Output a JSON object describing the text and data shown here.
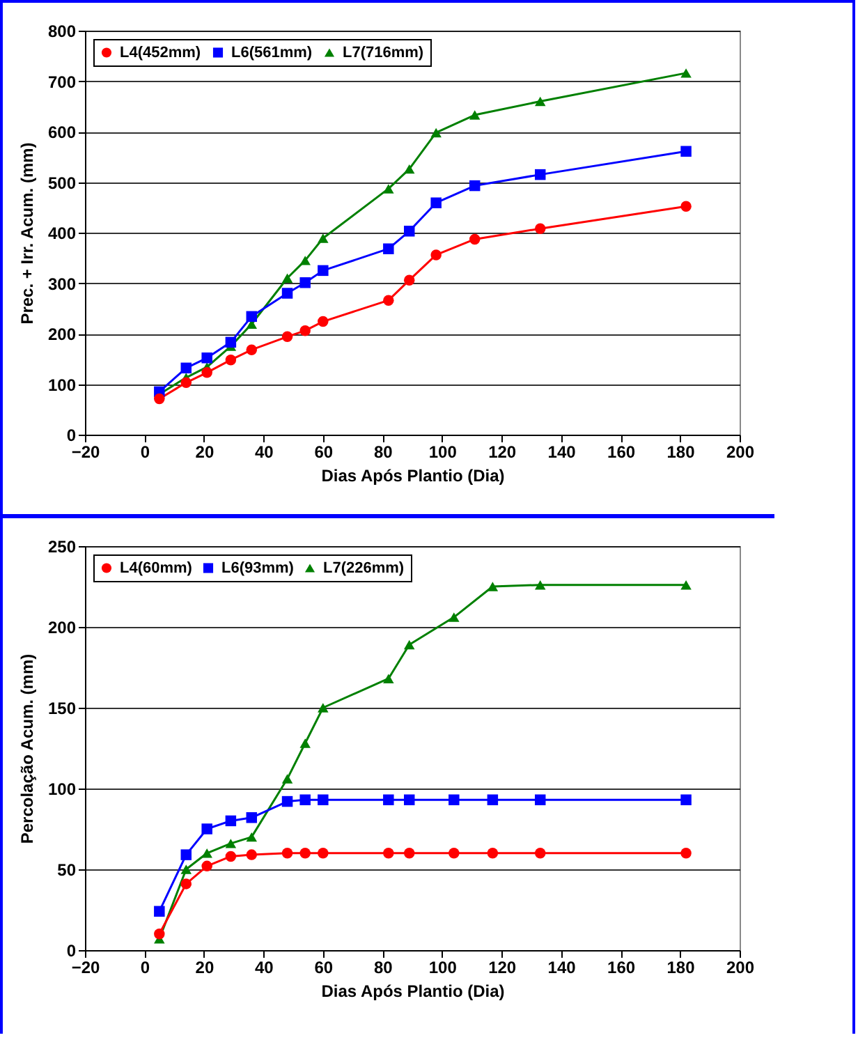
{
  "chart_data": [
    {
      "type": "line",
      "xlabel": "Dias Após Plantio (Dia)",
      "ylabel": "Prec. + Irr. Acum. (mm)",
      "xlim": [
        -20,
        200
      ],
      "xticks": [
        -20,
        0,
        20,
        40,
        60,
        80,
        100,
        120,
        140,
        160,
        180,
        200
      ],
      "ylim": [
        0,
        800
      ],
      "yticks": [
        0,
        100,
        200,
        300,
        400,
        500,
        600,
        700,
        800
      ],
      "grid": "y",
      "legend": "top left",
      "x": [
        5,
        14,
        21,
        29,
        36,
        48,
        54,
        60,
        82,
        89,
        98,
        111,
        133,
        182
      ],
      "series": [
        {
          "name": "L4(452mm)",
          "color": "#ff0000",
          "marker": "circle",
          "values": [
            71,
            103,
            123,
            148,
            168,
            194,
            206,
            224,
            266,
            306,
            356,
            387,
            408,
            452
          ]
        },
        {
          "name": "L6(561mm)",
          "color": "#0000ff",
          "marker": "square",
          "values": [
            85,
            132,
            152,
            183,
            234,
            280,
            301,
            325,
            368,
            403,
            459,
            493,
            515,
            561
          ]
        },
        {
          "name": "L7(716mm)",
          "color": "#008000",
          "marker": "triangle",
          "values": [
            80,
            113,
            134,
            175,
            219,
            310,
            345,
            389,
            487,
            526,
            598,
            633,
            660,
            716
          ]
        }
      ]
    },
    {
      "type": "line",
      "xlabel": "Dias Após Plantio (Dia)",
      "ylabel": "Percolação Acum. (mm)",
      "xlim": [
        -20,
        200
      ],
      "xticks": [
        -20,
        0,
        20,
        40,
        60,
        80,
        100,
        120,
        140,
        160,
        180,
        200
      ],
      "ylim": [
        0,
        250
      ],
      "yticks": [
        0,
        50,
        100,
        150,
        200,
        250
      ],
      "grid": "y",
      "legend": "top left",
      "x": [
        5,
        14,
        21,
        29,
        36,
        48,
        54,
        60,
        82,
        89,
        104,
        117,
        133,
        182
      ],
      "series": [
        {
          "name": "L4(60mm)",
          "color": "#ff0000",
          "marker": "circle",
          "values": [
            10,
            41,
            52,
            58,
            59,
            60,
            60,
            60,
            60,
            60,
            60,
            60,
            60,
            60
          ]
        },
        {
          "name": "L6(93mm)",
          "color": "#0000ff",
          "marker": "square",
          "values": [
            24,
            59,
            75,
            80,
            82,
            92,
            93,
            93,
            93,
            93,
            93,
            93,
            93,
            93
          ]
        },
        {
          "name": "L7(226mm)",
          "color": "#008000",
          "marker": "triangle",
          "values": [
            7,
            50,
            60,
            66,
            70,
            106,
            128,
            150,
            168,
            189,
            206,
            225,
            226,
            226
          ]
        }
      ]
    }
  ]
}
